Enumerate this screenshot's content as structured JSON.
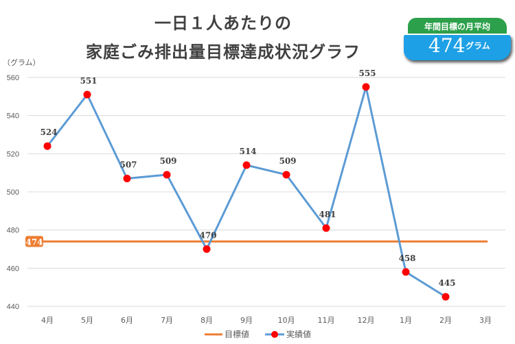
{
  "chart_data": {
    "type": "line",
    "title_lines": [
      "一日１人あたりの",
      "家庭ごみ排出量目標達成状況グラフ"
    ],
    "ylabel": "（グラム）",
    "ylim": [
      440,
      560
    ],
    "yticks": [
      440,
      460,
      480,
      500,
      520,
      540,
      560
    ],
    "grid": true,
    "categories": [
      "4月",
      "5月",
      "6月",
      "7月",
      "8月",
      "9月",
      "10月",
      "11月",
      "12月",
      "1月",
      "2月",
      "3月"
    ],
    "series": [
      {
        "name": "目標値",
        "color": "#ed7d31",
        "values": [
          474,
          474,
          474,
          474,
          474,
          474,
          474,
          474,
          474,
          474,
          474,
          474
        ],
        "label": "474"
      },
      {
        "name": "実績値",
        "color": "#5b9bd5",
        "marker_color": "#ff0000",
        "values": [
          524,
          551,
          507,
          509,
          470,
          514,
          509,
          481,
          555,
          458,
          445,
          null
        ]
      }
    ],
    "legend": "bottom",
    "badge": {
      "title": "年間目標の月平均",
      "value": "474",
      "unit": "グラム"
    }
  }
}
